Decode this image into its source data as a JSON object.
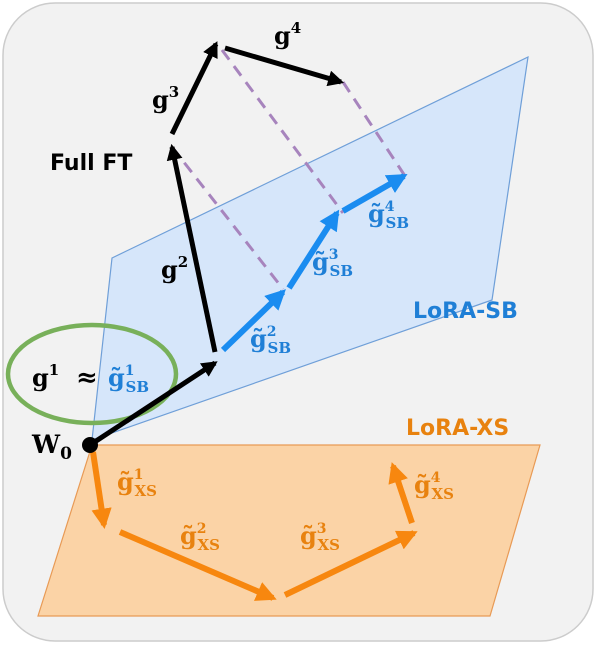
{
  "colors": {
    "background_panel": "#f2f2f2",
    "panel_border": "#cccccc",
    "sb_plane_fill": "#d6e6fa",
    "sb_plane_stroke": "#6f9fd8",
    "xs_plane_fill": "#fbd3a6",
    "xs_plane_stroke": "#e89a55",
    "full_ft": "#000000",
    "lora_sb": "#1a8cf0",
    "lora_xs": "#f7870f",
    "projection_dash": "#a784bd",
    "ellipse": "#78b05a"
  },
  "labels": {
    "full_ft": "Full FT",
    "lora_sb": "LoRA-SB",
    "lora_xs": "LoRA-XS",
    "origin": "W",
    "origin_sub": "0",
    "approx": "≈"
  },
  "full_ft_steps": [
    {
      "base": "g",
      "sup": "1"
    },
    {
      "base": "g",
      "sup": "2"
    },
    {
      "base": "g",
      "sup": "3"
    },
    {
      "base": "g",
      "sup": "4"
    }
  ],
  "sb_steps": [
    {
      "base": "g̃",
      "sup": "1",
      "sub": "SB"
    },
    {
      "base": "g̃",
      "sup": "2",
      "sub": "SB"
    },
    {
      "base": "g̃",
      "sup": "3",
      "sub": "SB"
    },
    {
      "base": "g̃",
      "sup": "4",
      "sub": "SB"
    }
  ],
  "xs_steps": [
    {
      "base": "g̃",
      "sup": "1",
      "sub": "XS"
    },
    {
      "base": "g̃",
      "sup": "2",
      "sub": "XS"
    },
    {
      "base": "g̃",
      "sup": "3",
      "sub": "XS"
    },
    {
      "base": "g̃",
      "sup": "4",
      "sub": "XS"
    }
  ]
}
